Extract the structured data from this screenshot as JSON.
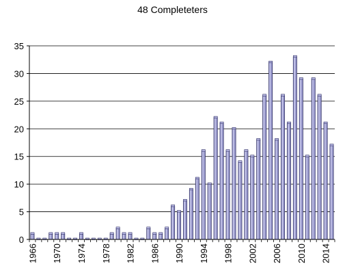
{
  "chart_data": {
    "type": "bar",
    "title": "48 Completeters",
    "xlabel": "",
    "ylabel": "",
    "ylim": [
      0,
      35
    ],
    "yticks": [
      0,
      5,
      10,
      15,
      20,
      25,
      30,
      35
    ],
    "grid": "horizontal",
    "legend": "none",
    "bar_color": "#9999cc",
    "bar_edge_color": "#333366",
    "categories": [
      "1966",
      "1967",
      "1968",
      "1969",
      "1970",
      "1971",
      "1972",
      "1973",
      "1974",
      "1975",
      "1976",
      "1977",
      "1978",
      "1979",
      "1980",
      "1981",
      "1982",
      "1983",
      "1984",
      "1985",
      "1986",
      "1987",
      "1988",
      "1989",
      "1990",
      "1991",
      "1992",
      "1993",
      "1994",
      "1995",
      "1996",
      "1997",
      "1998",
      "1999",
      "2000",
      "2001",
      "2002",
      "2003",
      "2004",
      "2005",
      "2006",
      "2007",
      "2008",
      "2009",
      "2010",
      "2011",
      "2012",
      "2013",
      "2014",
      "2015"
    ],
    "tick_labels": [
      "1966",
      "1970",
      "1974",
      "1978",
      "1982",
      "1986",
      "1990",
      "1994",
      "1998",
      "2002",
      "2006",
      "2010",
      "2014"
    ],
    "values": [
      1,
      0,
      0,
      1,
      1,
      1,
      0,
      0,
      1,
      0,
      0,
      0,
      0,
      1,
      2,
      1,
      1,
      0,
      0,
      2,
      1,
      1,
      2,
      6,
      5,
      7,
      9,
      11,
      16,
      10,
      22,
      21,
      16,
      20,
      14,
      16,
      15,
      18,
      26,
      32,
      18,
      26,
      21,
      33,
      29,
      15,
      29,
      26,
      21,
      17
    ]
  }
}
